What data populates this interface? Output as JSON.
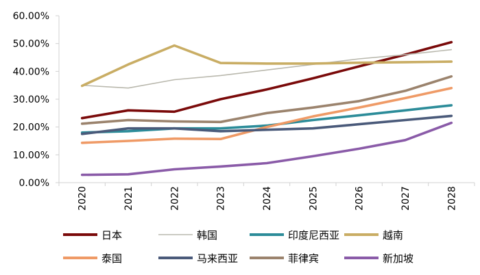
{
  "chart_data": {
    "type": "line",
    "title": "",
    "xlabel": "",
    "ylabel": "",
    "x": [
      "2020",
      "2021",
      "2022",
      "2023",
      "2024",
      "2025",
      "2026",
      "2027",
      "2028"
    ],
    "ylim": [
      0,
      60
    ],
    "yticks": [
      "0.00%",
      "10.00%",
      "20.00%",
      "30.00%",
      "40.00%",
      "50.00%",
      "60.00%"
    ],
    "grid": false,
    "legend_position": "bottom",
    "series": [
      {
        "name": "日本",
        "color": "#7a0a0a",
        "width": "thick",
        "values": [
          23.2,
          26.0,
          25.5,
          30.0,
          33.5,
          37.5,
          41.8,
          46.0,
          50.5
        ]
      },
      {
        "name": "韩国",
        "color": "#b9b8ad",
        "width": "thin",
        "values": [
          35.0,
          34.0,
          37.0,
          38.5,
          40.5,
          42.5,
          44.5,
          46.0,
          47.8
        ]
      },
      {
        "name": "印度尼西亚",
        "color": "#2c8c99",
        "width": "thick",
        "values": [
          18.0,
          18.5,
          19.5,
          19.5,
          20.5,
          22.5,
          24.2,
          26.0,
          27.8
        ]
      },
      {
        "name": "越南",
        "color": "#c9ad64",
        "width": "thick",
        "values": [
          34.8,
          42.5,
          49.3,
          43.0,
          42.8,
          42.8,
          43.1,
          43.3,
          43.5
        ]
      },
      {
        "name": "泰国",
        "color": "#ef9a66",
        "width": "thick",
        "values": [
          14.3,
          15.0,
          15.8,
          15.7,
          20.0,
          23.8,
          27.0,
          30.4,
          34.0
        ]
      },
      {
        "name": "马来西亚",
        "color": "#4a5a7a",
        "width": "thick",
        "values": [
          17.5,
          19.5,
          19.5,
          18.5,
          19.0,
          19.5,
          21.0,
          22.5,
          24.0
        ]
      },
      {
        "name": "菲律宾",
        "color": "#9b836d",
        "width": "thick",
        "values": [
          21.2,
          22.5,
          22.0,
          21.8,
          25.0,
          27.0,
          29.3,
          33.0,
          38.2
        ]
      },
      {
        "name": "新加坡",
        "color": "#8a5ba8",
        "width": "thick",
        "values": [
          2.8,
          3.0,
          4.8,
          5.8,
          7.0,
          9.5,
          12.2,
          15.3,
          21.5
        ]
      }
    ]
  }
}
